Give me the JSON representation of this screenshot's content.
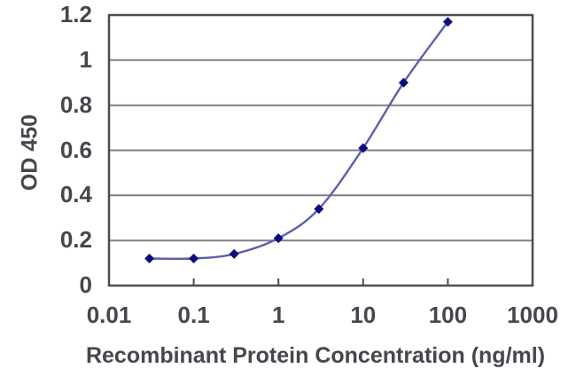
{
  "chart_data": {
    "type": "line",
    "title": "",
    "xlabel": "Recombinant Protein Concentration (ng/ml)",
    "ylabel": "OD 450",
    "x_scale": "log",
    "xlim": [
      0.01,
      1000
    ],
    "ylim": [
      0,
      1.2
    ],
    "x_ticks": [
      "0.01",
      "0.1",
      "1",
      "10",
      "100",
      "1000"
    ],
    "y_ticks": [
      "0",
      "0.2",
      "0.4",
      "0.6",
      "0.8",
      "1",
      "1.2"
    ],
    "grid": "horizontal-only",
    "legend": "none",
    "series": [
      {
        "name": "OD 450",
        "x": [
          0.03,
          0.1,
          0.3,
          1,
          3,
          10,
          30,
          100
        ],
        "y": [
          0.12,
          0.12,
          0.14,
          0.21,
          0.34,
          0.61,
          0.9,
          1.17
        ],
        "marker": "diamond",
        "line_color": "#5e5ea9",
        "marker_color": "#0b0b7e",
        "smoothed": true
      }
    ],
    "colors": {
      "grid": "#7f7f7f",
      "frame": "#4c4c4c",
      "text": "#46464e",
      "background": "#ffffff"
    }
  }
}
